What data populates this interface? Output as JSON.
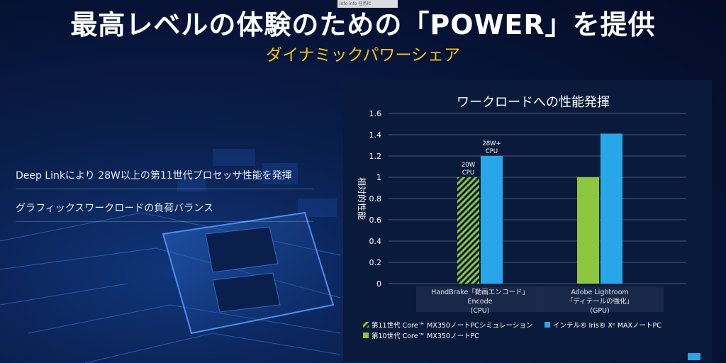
{
  "slide": {
    "title": "最高レベルの体験のための「POWER」を提供",
    "subtitle": "ダイナミックパワーシェア",
    "bullets": [
      "Deep Linkにより 28W以上の第11世代プロセッサ性能を発揮",
      "グラフィックスワークロードの負荷バランス"
    ],
    "toolbar_text": "info info 任务栏"
  },
  "colors": {
    "green": "#8dc63f",
    "blue": "#27a7e8",
    "title": "#ffffff",
    "subtitle": "#f2c21b"
  },
  "chart_data": {
    "type": "bar",
    "title": "ワークロードへの性能発揮",
    "ylabel": "相対的性能",
    "ylim": [
      0,
      1.6
    ],
    "yticks": [
      "1.6",
      "1.4",
      "1.2",
      "1",
      "0.8",
      "0.6",
      "0.4",
      "0.2",
      "0"
    ],
    "grid": true,
    "legend_position": "bottom",
    "groups": [
      {
        "label_lines": [
          "HandBrake「動画エンコード」",
          "Encode",
          "(CPU)"
        ],
        "bars": [
          {
            "series": 0,
            "value": 1.0,
            "label_lines": [
              "20W",
              "CPU"
            ]
          },
          {
            "series": 2,
            "value": 1.2,
            "label_lines": [
              "28W+",
              "CPU"
            ]
          }
        ]
      },
      {
        "label_lines": [
          "Adobe Lightroom",
          "「ディテールの強化」",
          "(GPU)"
        ],
        "bars": [
          {
            "series": 1,
            "value": 1.0,
            "label_lines": []
          },
          {
            "series": 2,
            "value": 1.41,
            "label_lines": []
          }
        ]
      }
    ],
    "series": [
      {
        "name": "第11世代 Core™ MX350ノートPCシミュレーション",
        "color": "#8dc63f",
        "pattern": "hatched"
      },
      {
        "name": "第10世代 Core™ MX350ノートPC",
        "color": "#8dc63f",
        "pattern": "solid"
      },
      {
        "name": "インテル® Iris® Xᵉ MAXノートPC",
        "color": "#27a7e8",
        "pattern": "solid"
      }
    ]
  }
}
